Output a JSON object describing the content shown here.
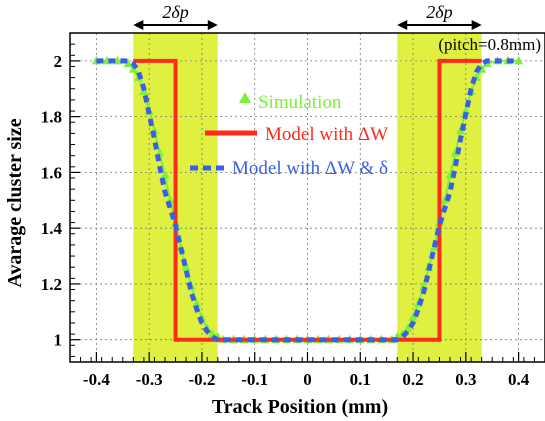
{
  "chart_data": {
    "type": "line",
    "title": "",
    "xlabel": "Track Position (mm)",
    "ylabel": "Avarage cluster size",
    "xlim": [
      -0.45,
      0.45
    ],
    "ylim": [
      0.92,
      2.1
    ],
    "xticks": [
      -0.4,
      -0.3,
      -0.2,
      -0.1,
      0,
      0.1,
      0.2,
      0.3,
      0.4
    ],
    "xtick_labels": [
      "-0.4",
      "-0.3",
      "-0.2",
      "-0.1",
      "0",
      "0.1",
      "0.2",
      "0.3",
      "0.4"
    ],
    "yticks": [
      1,
      1.2,
      1.4,
      1.6,
      1.8,
      2
    ],
    "ytick_labels": [
      "1",
      "1.2",
      "1.4",
      "1.6",
      "1.8",
      "2"
    ],
    "grid": true,
    "legend_position": "center",
    "annotation": "(pitch=0.8mm)",
    "shaded_regions": [
      {
        "label": "2δp",
        "x0": -0.33,
        "x1": -0.17,
        "color": "#e0f040"
      },
      {
        "label": "2δp",
        "x0": 0.17,
        "x1": 0.33,
        "color": "#e0f040"
      }
    ],
    "series": [
      {
        "name": "Simulation",
        "color": "#7cf03a",
        "style": "line+triangles",
        "x": [
          -0.4,
          -0.38,
          -0.36,
          -0.34,
          -0.33,
          -0.32,
          -0.31,
          -0.3,
          -0.29,
          -0.28,
          -0.27,
          -0.26,
          -0.25,
          -0.24,
          -0.23,
          -0.22,
          -0.21,
          -0.2,
          -0.19,
          -0.18,
          -0.17,
          -0.16,
          -0.14,
          -0.12,
          -0.1,
          -0.08,
          -0.06,
          -0.04,
          -0.02,
          0,
          0.02,
          0.04,
          0.06,
          0.08,
          0.1,
          0.12,
          0.14,
          0.16,
          0.17,
          0.18,
          0.19,
          0.2,
          0.21,
          0.22,
          0.23,
          0.24,
          0.25,
          0.26,
          0.27,
          0.28,
          0.29,
          0.3,
          0.31,
          0.32,
          0.33,
          0.34,
          0.36,
          0.38,
          0.4
        ],
        "y": [
          2,
          2,
          2,
          1.99,
          1.97,
          1.94,
          1.89,
          1.82,
          1.75,
          1.67,
          1.59,
          1.5,
          1.42,
          1.33,
          1.26,
          1.19,
          1.13,
          1.08,
          1.04,
          1.02,
          1.01,
          1,
          1,
          1,
          1,
          1,
          1,
          1,
          1,
          1,
          1,
          1,
          1,
          1,
          1,
          1,
          1,
          1,
          1.01,
          1.02,
          1.04,
          1.08,
          1.13,
          1.19,
          1.26,
          1.33,
          1.42,
          1.5,
          1.59,
          1.67,
          1.75,
          1.82,
          1.89,
          1.94,
          1.97,
          1.99,
          2,
          2,
          2
        ]
      },
      {
        "name": "Model with ΔW",
        "color": "#ff2a1a",
        "style": "solid",
        "x": [
          -0.33,
          -0.25,
          -0.25,
          0.25,
          0.25,
          0.33
        ],
        "y": [
          2,
          2,
          1,
          1,
          2,
          2
        ]
      },
      {
        "name": "Model with ΔW & δ",
        "color": "#3a5fe6",
        "style": "dashed",
        "x": [
          -0.4,
          -0.36,
          -0.34,
          -0.33,
          -0.32,
          -0.31,
          -0.3,
          -0.29,
          -0.28,
          -0.27,
          -0.26,
          -0.25,
          -0.24,
          -0.23,
          -0.22,
          -0.21,
          -0.2,
          -0.19,
          -0.18,
          -0.17,
          -0.16,
          -0.14,
          -0.12,
          -0.1,
          -0.05,
          0,
          0.05,
          0.1,
          0.12,
          0.14,
          0.16,
          0.17,
          0.18,
          0.19,
          0.2,
          0.21,
          0.22,
          0.23,
          0.24,
          0.25,
          0.26,
          0.27,
          0.28,
          0.29,
          0.3,
          0.31,
          0.32,
          0.33,
          0.34,
          0.36,
          0.4
        ],
        "y": [
          2,
          2,
          2,
          1.99,
          1.96,
          1.9,
          1.81,
          1.72,
          1.62,
          1.53,
          1.47,
          1.41,
          1.33,
          1.25,
          1.17,
          1.11,
          1.06,
          1.03,
          1.01,
          1.0,
          1.0,
          1,
          1,
          1,
          1,
          1,
          1,
          1,
          1,
          1,
          1.0,
          1.0,
          1.01,
          1.03,
          1.06,
          1.11,
          1.17,
          1.25,
          1.33,
          1.41,
          1.47,
          1.53,
          1.62,
          1.72,
          1.81,
          1.9,
          1.96,
          1.99,
          2,
          2,
          2
        ]
      }
    ]
  }
}
